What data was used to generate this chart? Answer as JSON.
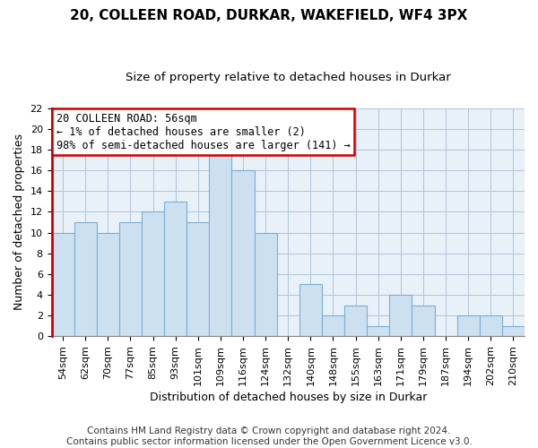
{
  "title": "20, COLLEEN ROAD, DURKAR, WAKEFIELD, WF4 3PX",
  "subtitle": "Size of property relative to detached houses in Durkar",
  "xlabel": "Distribution of detached houses by size in Durkar",
  "ylabel": "Number of detached properties",
  "footer_lines": [
    "Contains HM Land Registry data © Crown copyright and database right 2024.",
    "Contains public sector information licensed under the Open Government Licence v3.0."
  ],
  "annotation_title": "20 COLLEEN ROAD: 56sqm",
  "annotation_line1": "← 1% of detached houses are smaller (2)",
  "annotation_line2": "98% of semi-detached houses are larger (141) →",
  "bar_labels": [
    "54sqm",
    "62sqm",
    "70sqm",
    "77sqm",
    "85sqm",
    "93sqm",
    "101sqm",
    "109sqm",
    "116sqm",
    "124sqm",
    "132sqm",
    "140sqm",
    "148sqm",
    "155sqm",
    "163sqm",
    "171sqm",
    "179sqm",
    "187sqm",
    "194sqm",
    "202sqm",
    "210sqm"
  ],
  "bar_values": [
    10,
    11,
    10,
    11,
    12,
    13,
    11,
    18,
    16,
    10,
    0,
    5,
    2,
    3,
    1,
    4,
    3,
    0,
    2,
    2,
    1
  ],
  "bar_color": "#cce0f0",
  "bar_edge_color": "#7aafd4",
  "annotation_box_edge_color": "#cc0000",
  "annotation_box_face_color": "#ffffff",
  "red_line_color": "#cc0000",
  "ylim": [
    0,
    22
  ],
  "yticks": [
    0,
    2,
    4,
    6,
    8,
    10,
    12,
    14,
    16,
    18,
    20,
    22
  ],
  "plot_bg_color": "#e8f0f8",
  "fig_bg_color": "#ffffff",
  "grid_color": "#b0c4d8",
  "title_fontsize": 11,
  "subtitle_fontsize": 9.5,
  "axis_label_fontsize": 9,
  "tick_fontsize": 8,
  "footer_fontsize": 7.5
}
